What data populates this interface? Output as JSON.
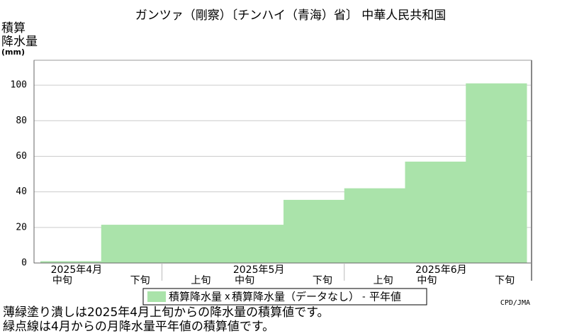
{
  "chart_data": {
    "type": "step-area",
    "title": "ガンツァ（剛察）〔チンハイ（青海）省〕 中華人民共和国",
    "y_label": [
      "積算",
      "降水量",
      "(mm)"
    ],
    "categories": [
      {
        "month": "2025年4月",
        "dekad": "中旬"
      },
      {
        "month": null,
        "dekad": "下旬"
      },
      {
        "month": null,
        "dekad": "上旬"
      },
      {
        "month": "2025年5月",
        "dekad": "中旬"
      },
      {
        "month": null,
        "dekad": "下旬"
      },
      {
        "month": null,
        "dekad": "上旬"
      },
      {
        "month": "2025年6月",
        "dekad": "中旬"
      },
      {
        "month": null,
        "dekad": "下旬"
      }
    ],
    "series": [
      {
        "name": "積算降水量",
        "color": "#aae3aa",
        "values": [
          1,
          21.5,
          21.5,
          21.5,
          35.5,
          42,
          57,
          101
        ]
      },
      {
        "name": "積算降水量（データなし）",
        "marker": "x",
        "values": [
          null,
          null,
          null,
          null,
          null,
          null,
          null,
          null
        ]
      },
      {
        "name": "平年値",
        "marker": "-",
        "values": [
          null,
          null,
          null,
          null,
          null,
          null,
          null,
          null
        ]
      }
    ],
    "ylim": [
      0,
      114
    ],
    "yticks": [
      0,
      20,
      40,
      60,
      80,
      100
    ],
    "grid": true,
    "credit": "CPD/JMA",
    "notes": [
      "薄緑塗り潰しは2025年4月上旬からの降水量の積算値です。",
      "緑点線は4月からの月降水量平年値の積算値です。"
    ]
  }
}
